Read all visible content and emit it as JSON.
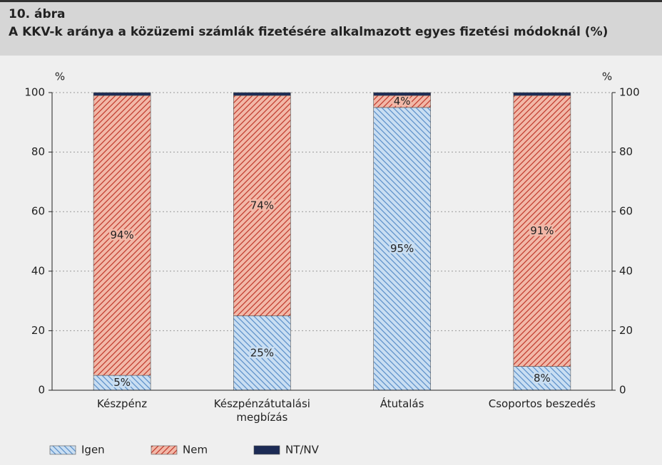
{
  "chart_data": {
    "type": "stacked_bar",
    "title": "10. ábra",
    "subtitle": "A KKV-k aránya a közüzemi számlák fizetésére alkalmazott egyes fizetési módoknál (%)",
    "y_label": "%",
    "y2_label": "%",
    "categories": [
      "Készpénz",
      "Készpénzátutalási megbízás",
      "Átutalás",
      "Csoportos beszedés"
    ],
    "series": [
      {
        "name": "Igen",
        "color": "#c9def2",
        "hatch_color": "#5b8fc9",
        "hatch": "back",
        "values": [
          5,
          25,
          95,
          8
        ],
        "value_labels": [
          "5%",
          "25%",
          "95%",
          "8%"
        ]
      },
      {
        "name": "Nem",
        "color": "#f2b8a8",
        "hatch_color": "#c0392b",
        "hatch": "forward",
        "values": [
          94,
          74,
          4,
          91
        ],
        "value_labels": [
          "94%",
          "74%",
          "4%",
          "91%"
        ]
      },
      {
        "name": "NT/NV",
        "color": "#1c2b55",
        "values": [
          1,
          1,
          1,
          1
        ]
      }
    ],
    "ylim": [
      0,
      100
    ],
    "yticks": [
      0,
      20,
      40,
      60,
      80,
      100
    ],
    "y2lim": [
      0,
      100
    ],
    "y2ticks": [
      0,
      20,
      40,
      60,
      80,
      100
    ],
    "grid": true,
    "legend": "bottom"
  }
}
